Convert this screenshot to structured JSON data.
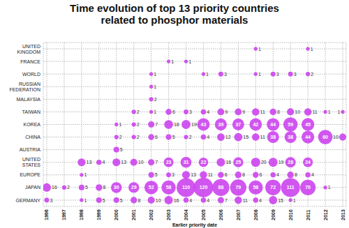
{
  "chart_data": {
    "type": "bubble",
    "title": "Time evolution of top 13 priority countries related to phosphor materials",
    "x_label": "Earlier priority date",
    "x": [
      1996,
      1997,
      1998,
      1999,
      2000,
      2001,
      2002,
      2003,
      2004,
      2005,
      2006,
      2007,
      2008,
      2009,
      2010,
      2011,
      2012,
      2013
    ],
    "xlim": [
      1995.8,
      2013.2
    ],
    "xticks": [
      1996,
      1997,
      1998,
      1999,
      2000,
      2001,
      2002,
      2003,
      2004,
      2005,
      2006,
      2007,
      2008,
      2009,
      2010,
      2011,
      2012,
      2013
    ],
    "grid": true,
    "data_labels": true,
    "color": "#cc44ee",
    "series": [
      {
        "name": "UNITED KINGDOM",
        "values": [
          null,
          null,
          null,
          null,
          null,
          null,
          null,
          null,
          null,
          null,
          null,
          null,
          1,
          null,
          null,
          1,
          null,
          null
        ]
      },
      {
        "name": "FRANCE",
        "values": [
          null,
          null,
          null,
          null,
          null,
          null,
          null,
          1,
          1,
          null,
          null,
          null,
          null,
          null,
          null,
          null,
          null,
          null
        ]
      },
      {
        "name": "WORLD",
        "values": [
          null,
          null,
          null,
          null,
          null,
          null,
          1,
          null,
          null,
          1,
          3,
          null,
          1,
          3,
          3,
          2,
          null,
          null
        ]
      },
      {
        "name": "RUSSIAN FEDERATION",
        "values": [
          null,
          null,
          null,
          null,
          null,
          null,
          1,
          null,
          null,
          null,
          null,
          null,
          null,
          null,
          null,
          null,
          null,
          null
        ]
      },
      {
        "name": "MALAYSIA",
        "values": [
          null,
          null,
          null,
          null,
          null,
          null,
          2,
          null,
          null,
          null,
          null,
          null,
          null,
          null,
          null,
          null,
          null,
          null
        ]
      },
      {
        "name": "TAIWAN",
        "values": [
          null,
          null,
          null,
          null,
          null,
          2,
          1,
          6,
          3,
          4,
          9,
          9,
          11,
          8,
          10,
          11,
          1,
          1
        ]
      },
      {
        "name": "KOREA",
        "values": [
          null,
          null,
          null,
          null,
          1,
          2,
          7,
          18,
          19,
          43,
          39,
          37,
          42,
          44,
          59,
          45,
          null,
          null
        ]
      },
      {
        "name": "CHINA",
        "values": [
          null,
          null,
          null,
          null,
          2,
          2,
          6,
          5,
          2,
          4,
          12,
          15,
          11,
          38,
          38,
          44,
          60,
          10
        ]
      },
      {
        "name": "AUSTRIA",
        "values": [
          null,
          null,
          null,
          null,
          5,
          null,
          null,
          null,
          null,
          null,
          null,
          null,
          null,
          null,
          null,
          null,
          null,
          null
        ]
      },
      {
        "name": "UNITED STATES",
        "values": [
          null,
          null,
          13,
          4,
          13,
          10,
          7,
          23,
          31,
          22,
          16,
          25,
          20,
          19,
          28,
          24,
          null,
          null
        ]
      },
      {
        "name": "EUROPE",
        "values": [
          null,
          null,
          1,
          null,
          null,
          null,
          5,
          3,
          13,
          11,
          6,
          8,
          6,
          4,
          8,
          4,
          null,
          null
        ]
      },
      {
        "name": "JAPAN",
        "values": [
          16,
          2,
          5,
          8,
          30,
          29,
          52,
          58,
          110,
          120,
          88,
          79,
          58,
          72,
          111,
          70,
          1,
          null
        ]
      },
      {
        "name": "GERMANY",
        "values": [
          3,
          null,
          1,
          5,
          5,
          8,
          10,
          16,
          4,
          4,
          7,
          11,
          4,
          15,
          1,
          null,
          null,
          null
        ]
      }
    ]
  }
}
